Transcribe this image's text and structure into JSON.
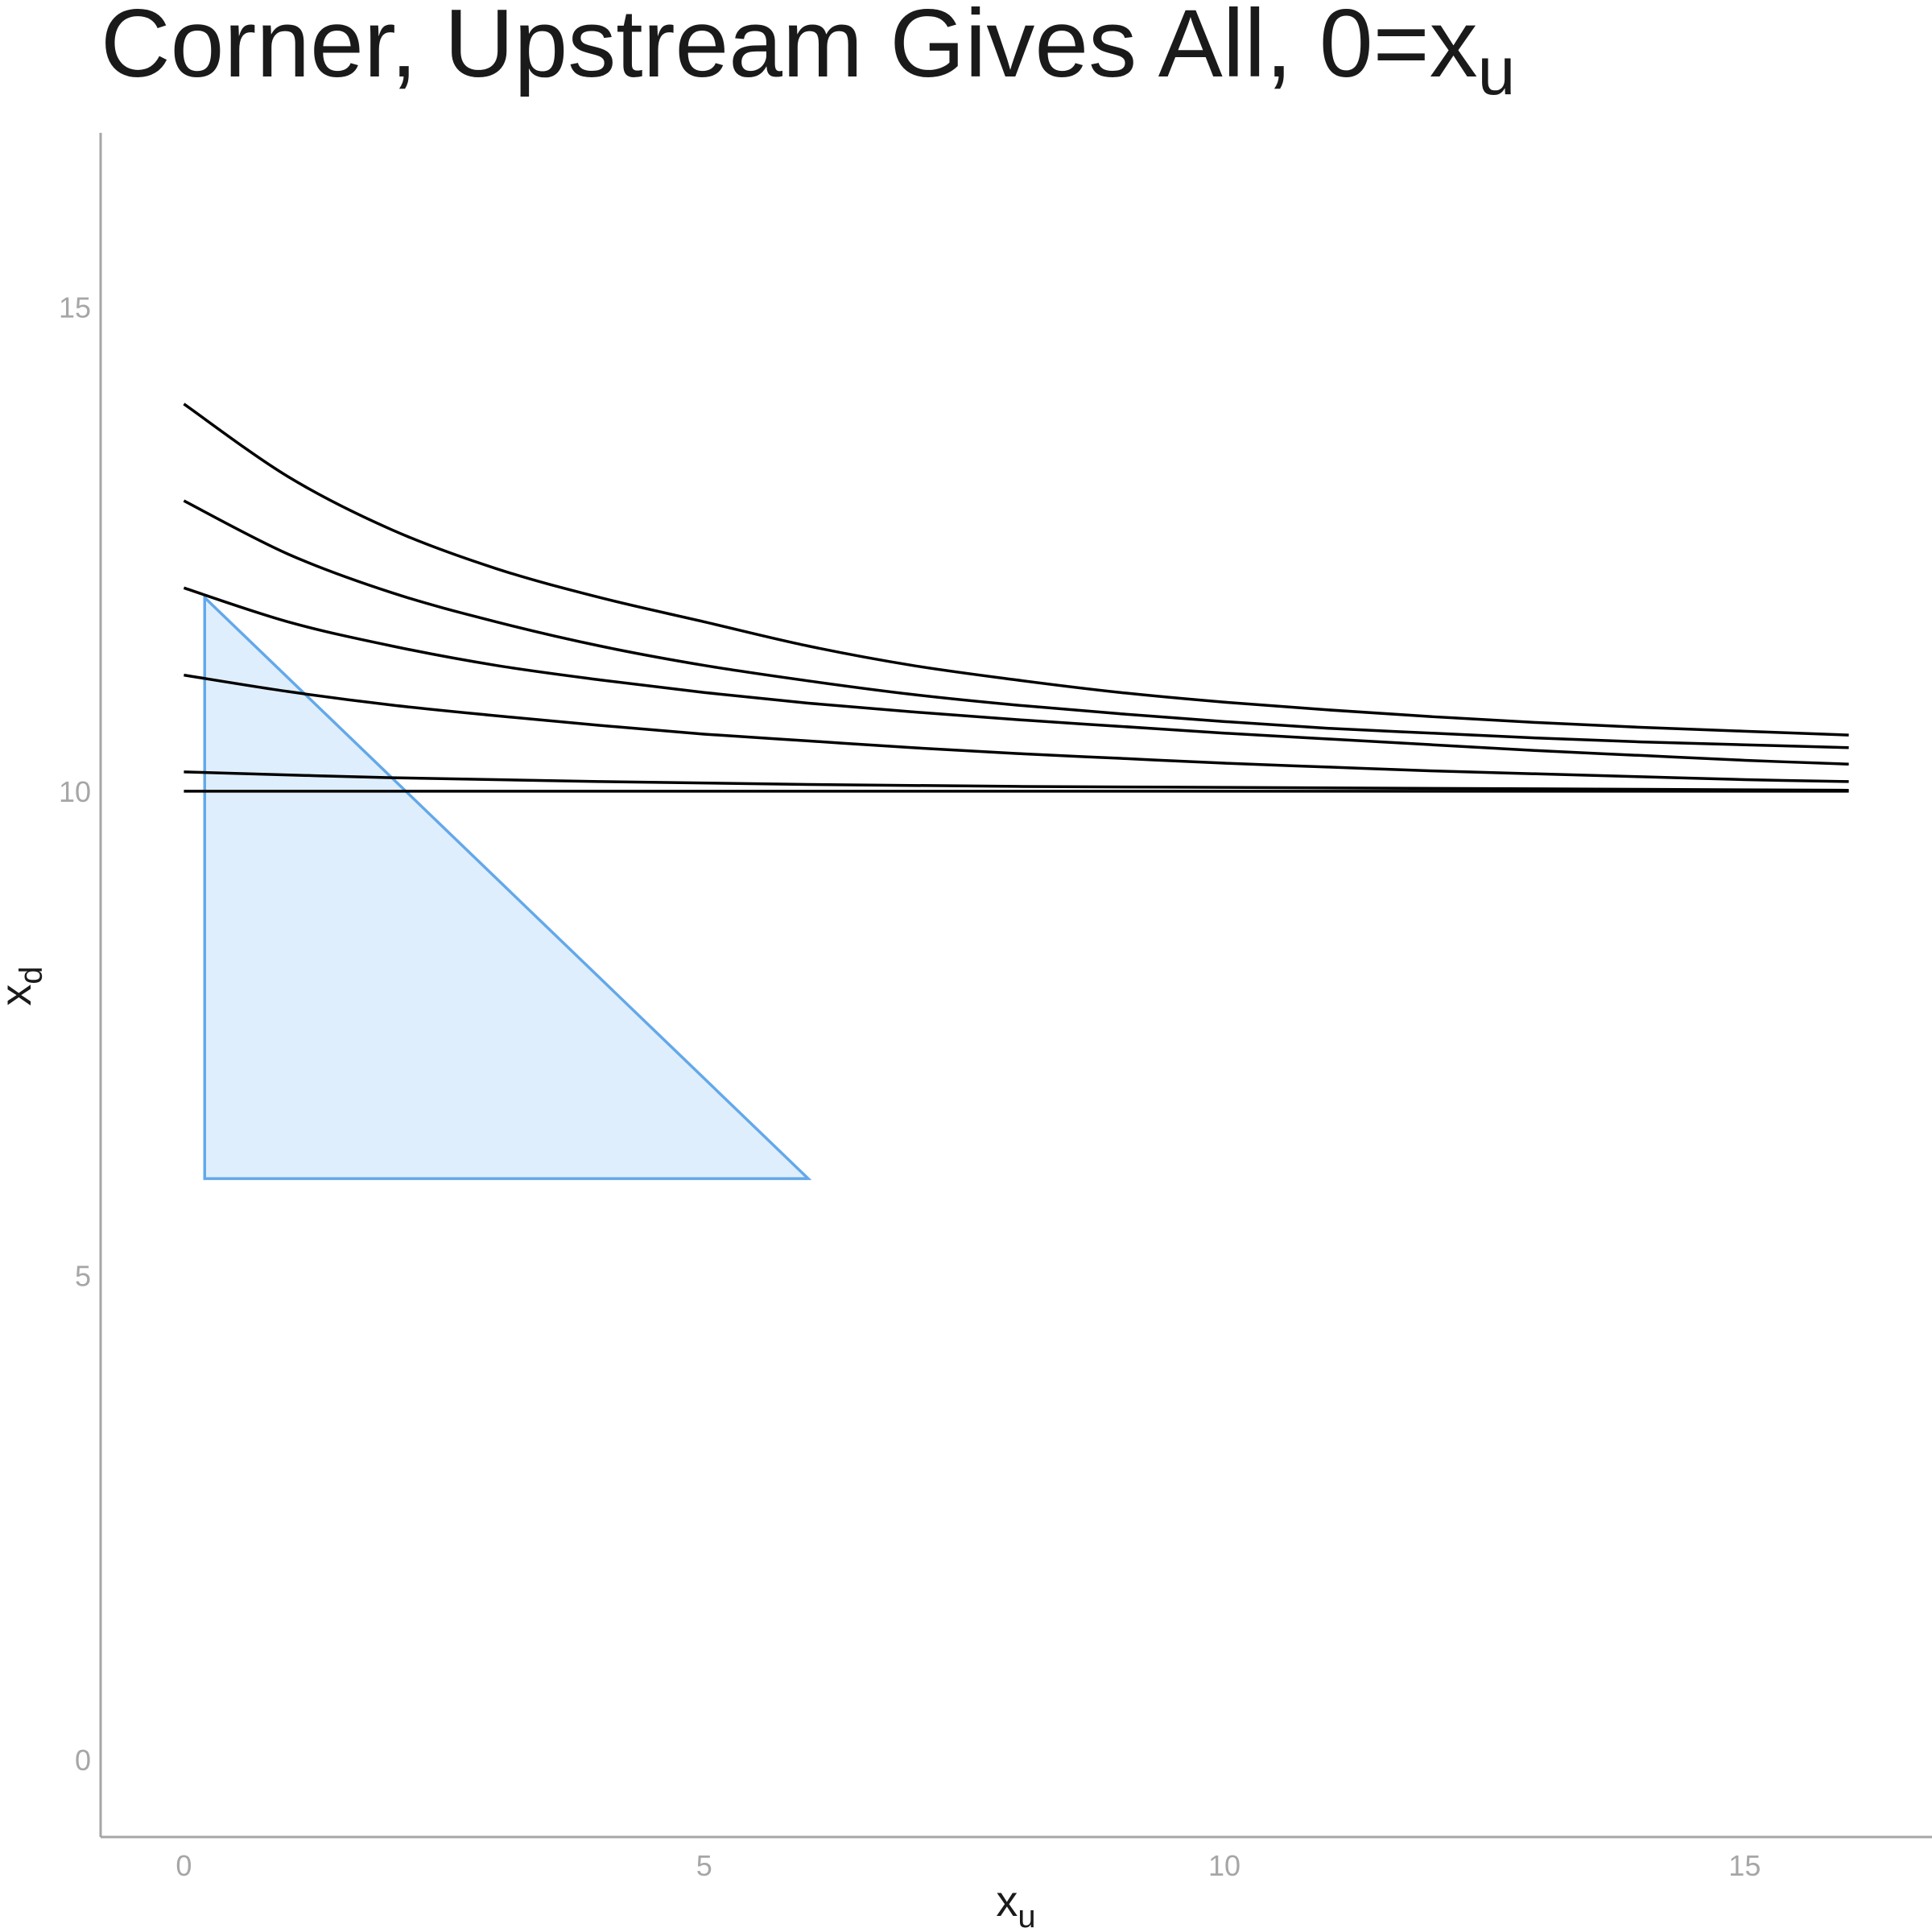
{
  "chart_data": {
    "type": "line",
    "title": "Corner, Upstream Gives All, 0=x",
    "title_subscript": "u",
    "xlabel": "x",
    "xlabel_subscript": "u",
    "ylabel": "x",
    "ylabel_subscript": "d",
    "xlim": [
      -0.8,
      16.8
    ],
    "ylim": [
      -0.8,
      16.8
    ],
    "x_ticks": [
      0,
      5,
      10,
      15
    ],
    "y_ticks": [
      0,
      5,
      10,
      15
    ],
    "grid": false,
    "line_color": "#000000",
    "series": [
      {
        "x": [
          0,
          1,
          2,
          3,
          4,
          5,
          6,
          7,
          8,
          9,
          10,
          11,
          12,
          13,
          14,
          15,
          16
        ],
        "y": [
          14.0,
          13.25,
          12.7,
          12.3,
          12.0,
          11.75,
          11.5,
          11.3,
          11.15,
          11.02,
          10.92,
          10.84,
          10.77,
          10.71,
          10.66,
          10.62,
          10.58
        ]
      },
      {
        "x": [
          0,
          1,
          2,
          3,
          4,
          5,
          6,
          7,
          8,
          9,
          10,
          11,
          12,
          13,
          14,
          15,
          16
        ],
        "y": [
          13.0,
          12.45,
          12.05,
          11.75,
          11.5,
          11.3,
          11.14,
          11.0,
          10.89,
          10.8,
          10.72,
          10.65,
          10.6,
          10.55,
          10.51,
          10.48,
          10.45
        ]
      },
      {
        "x": [
          0,
          1,
          2,
          3,
          4,
          5,
          6,
          7,
          8,
          9,
          10,
          11,
          12,
          13,
          14,
          15,
          16
        ],
        "y": [
          12.1,
          11.75,
          11.5,
          11.3,
          11.15,
          11.02,
          10.91,
          10.82,
          10.74,
          10.67,
          10.6,
          10.54,
          10.48,
          10.42,
          10.37,
          10.32,
          10.28
        ]
      },
      {
        "x": [
          0,
          1,
          2,
          3,
          4,
          5,
          6,
          7,
          8,
          9,
          10,
          11,
          12,
          13,
          14,
          15,
          16
        ],
        "y": [
          11.2,
          11.03,
          10.89,
          10.78,
          10.68,
          10.59,
          10.52,
          10.45,
          10.39,
          10.34,
          10.29,
          10.25,
          10.21,
          10.18,
          10.15,
          10.12,
          10.1
        ]
      },
      {
        "x": [
          0,
          2,
          4,
          6,
          8,
          10,
          12,
          14,
          16
        ],
        "y": [
          10.2,
          10.14,
          10.1,
          10.07,
          10.05,
          10.04,
          10.03,
          10.02,
          10.01
        ]
      },
      {
        "x": [
          0,
          16
        ],
        "y": [
          10.0,
          10.0
        ]
      }
    ],
    "region": {
      "fill": "#dfeefc",
      "stroke": "#63a8ea",
      "x": [
        0.2,
        6.0,
        0.2
      ],
      "y": [
        12.0,
        6.0,
        6.0
      ]
    }
  }
}
